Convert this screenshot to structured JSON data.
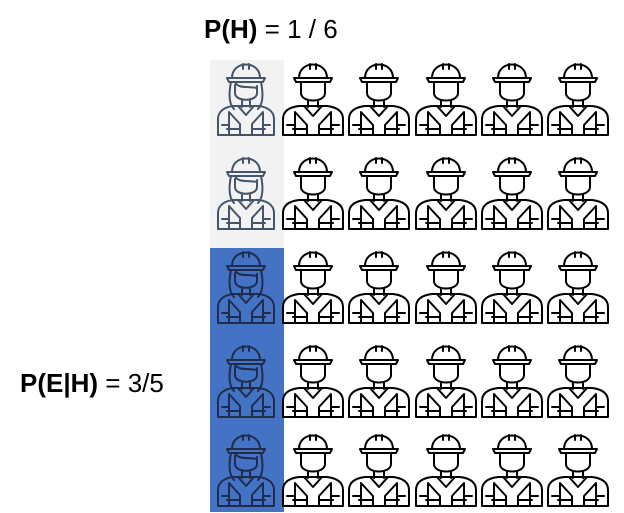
{
  "top_label": {
    "bold": "P(H)",
    "rest": " = 1 / 6"
  },
  "side_label": {
    "bold": "P(E|H)",
    "rest": " = 3/5"
  },
  "grid": {
    "rows": 5,
    "columns": 6,
    "hypothesis_column": 0,
    "evidence_rows": [
      2,
      3,
      4
    ],
    "colors": {
      "hypothesis_background": "#f2f2f2",
      "evidence_background": "#4472c4",
      "icon_stroke": "#000000",
      "female_stroke_light": "#44546a",
      "female_stroke_dark": "#1f2d4d"
    },
    "icons": {
      "hypothesis_column": "female-worker-icon",
      "other_columns": "male-worker-icon"
    }
  }
}
